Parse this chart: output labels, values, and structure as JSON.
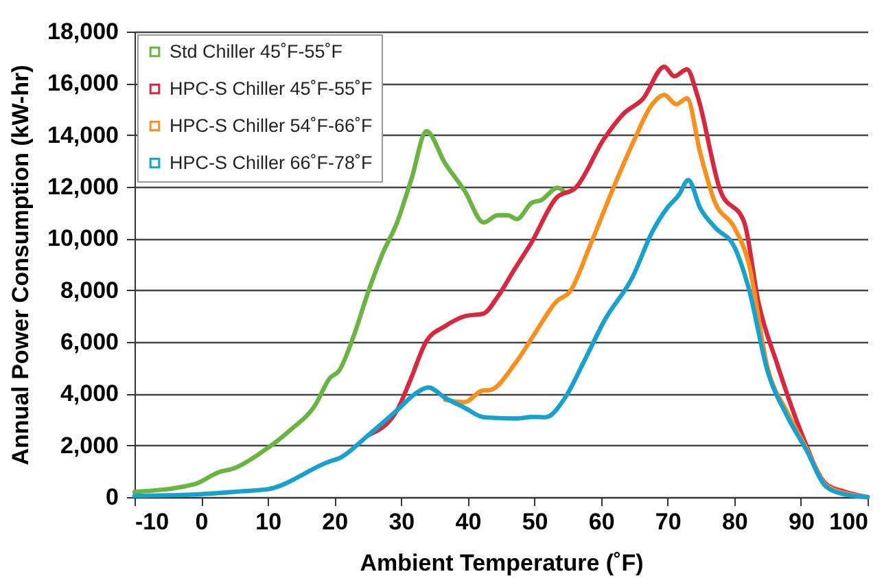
{
  "chart_data": {
    "type": "line",
    "xlabel": "Ambient Temperature (˚F)",
    "ylabel": "Annual Power Consumption (kW-hr)",
    "xlim": [
      -10,
      100
    ],
    "xticks": [
      -10,
      0,
      10,
      20,
      30,
      40,
      50,
      60,
      70,
      80,
      90,
      100
    ],
    "ylim": [
      0,
      18000
    ],
    "yticks": [
      0,
      {
        "value": 2000,
        "label": "2,000"
      },
      {
        "value": 4000,
        "label": "4,000"
      },
      {
        "value": 6000,
        "label": "6,000"
      },
      {
        "value": 8000,
        "label": "8,000"
      },
      {
        "value": 10000,
        "label": "10,000"
      },
      {
        "value": 12000,
        "label": "12,000"
      },
      {
        "value": 14000,
        "label": "14,000"
      },
      {
        "value": 16000,
        "label": "16,000"
      },
      {
        "value": 18000,
        "label": "18,000"
      }
    ],
    "grid": "y",
    "legend": "top left",
    "series": [
      {
        "name": "Std Chiller 45˚F-55˚F",
        "color": "#6ab541",
        "x": [
          -10,
          -1,
          2.7,
          4.8,
          9.1,
          13.4,
          17.1,
          19.3,
          20.7,
          22.9,
          25.1,
          27.2,
          29.4,
          31.6,
          33.8,
          36.6,
          39.5,
          42.4,
          44.5,
          46,
          47.4,
          49.6,
          51,
          53.5,
          54.6
        ],
        "values": [
          200,
          500,
          970,
          1100,
          1740,
          2600,
          3550,
          4600,
          4890,
          6240,
          7960,
          9400,
          10620,
          12340,
          14150,
          12910,
          11860,
          10620,
          10900,
          10900,
          10750,
          11380,
          11480,
          11960,
          11770
        ]
      },
      {
        "name": "HPC-S Chiller 45˚F-55˚F",
        "color": "#d6283f",
        "x": [
          25.1,
          29.4,
          31.4,
          33.8,
          36.6,
          39.5,
          42.4,
          44.5,
          47,
          49.6,
          53.3,
          56.2,
          60.5,
          63.4,
          66.3,
          69.5,
          71,
          72.9,
          74.5,
          77.9,
          81.5,
          83.6,
          86.5,
          90.2,
          93.8,
          96.7,
          100
        ],
        "values": [
          2400,
          3360,
          4530,
          6030,
          6610,
          6990,
          7100,
          7750,
          8800,
          9860,
          11570,
          11960,
          13870,
          14830,
          15400,
          16640,
          16270,
          16540,
          15500,
          11860,
          10620,
          7560,
          5100,
          2400,
          500,
          200,
          0
        ]
      },
      {
        "name": "HPC-S Chiller 54˚F-66˚F",
        "color": "#f7901e",
        "x": [
          36.6,
          39.5,
          42.4,
          43.1,
          47.4,
          50.3,
          53.3,
          55.4,
          58.3,
          61.9,
          64.8,
          67.7,
          69.5,
          71.3,
          72.9,
          74.9,
          77.1,
          80,
          82.1,
          85,
          87.9,
          90.8,
          93.8,
          96.7,
          100
        ],
        "values": [
          3760,
          3670,
          4130,
          4130,
          5270,
          6420,
          7560,
          7970,
          9690,
          11980,
          13700,
          15190,
          15550,
          15190,
          15420,
          13300,
          11400,
          10430,
          9110,
          5000,
          3300,
          1900,
          450,
          150,
          0
        ]
      },
      {
        "name": "HPC-S Chiller 66˚F-78˚F",
        "color": "#17a1cf",
        "x": [
          -10,
          -1,
          6.3,
          9.9,
          19.3,
          20.7,
          25.1,
          29.4,
          32.3,
          34.1,
          36.6,
          39.5,
          42.4,
          47.4,
          49.6,
          51.7,
          54.6,
          57.5,
          60.5,
          64.8,
          67.7,
          69.9,
          71.7,
          73.1,
          74.9,
          77.1,
          80,
          82.1,
          85,
          87.9,
          90.8,
          93.8,
          96.7,
          100
        ],
        "values": [
          50,
          100,
          230,
          300,
          1380,
          1500,
          2400,
          3360,
          4030,
          4240,
          3840,
          3460,
          3090,
          3040,
          3100,
          3090,
          3840,
          5270,
          6820,
          8540,
          10260,
          11170,
          11690,
          12260,
          11170,
          10430,
          9680,
          8140,
          4870,
          3150,
          1830,
          400,
          100,
          0
        ]
      }
    ]
  }
}
